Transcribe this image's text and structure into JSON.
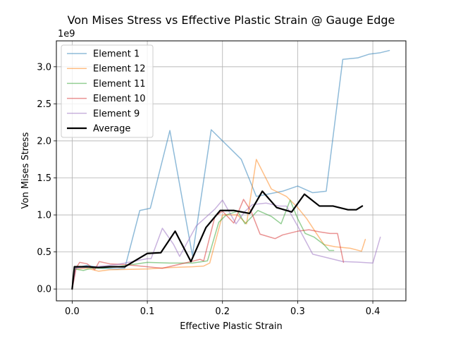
{
  "chart_data": {
    "type": "line",
    "title": "Von Mises Stress vs Effective Plastic Strain @ Gauge Edge",
    "xlabel": "Effective Plastic Strain",
    "ylabel": "Von Mises Stress",
    "y_offset_label": "1e9",
    "xlim": [
      -0.021,
      0.444
    ],
    "ylim": [
      -0.16,
      3.35
    ],
    "xticks": [
      0.0,
      0.1,
      0.2,
      0.3,
      0.4
    ],
    "xtick_labels": [
      "0.0",
      "0.1",
      "0.2",
      "0.3",
      "0.4"
    ],
    "yticks": [
      0.0,
      0.5,
      1.0,
      1.5,
      2.0,
      2.5,
      3.0
    ],
    "ytick_labels": [
      "0.0",
      "0.5",
      "1.0",
      "1.5",
      "2.0",
      "2.5",
      "3.0"
    ],
    "grid": true,
    "legend_position": "top-left",
    "series": [
      {
        "name": "Element 1",
        "color": "#1f77b4",
        "alpha": 0.5,
        "linewidth": 1.5,
        "x": [
          0.0,
          0.003,
          0.02,
          0.04,
          0.06,
          0.07,
          0.09,
          0.104,
          0.13,
          0.16,
          0.185,
          0.225,
          0.245,
          0.26,
          0.28,
          0.3,
          0.32,
          0.338,
          0.36,
          0.38,
          0.395,
          0.41,
          0.422
        ],
        "y": [
          0.0,
          0.28,
          0.32,
          0.28,
          0.27,
          0.28,
          1.06,
          1.09,
          2.14,
          0.45,
          2.15,
          1.75,
          1.25,
          1.28,
          1.32,
          1.39,
          1.3,
          1.32,
          3.1,
          3.12,
          3.17,
          3.19,
          3.22
        ]
      },
      {
        "name": "Element 12",
        "color": "#ff7f0e",
        "alpha": 0.5,
        "linewidth": 1.5,
        "x": [
          0.0,
          0.005,
          0.02,
          0.035,
          0.05,
          0.1,
          0.13,
          0.16,
          0.175,
          0.183,
          0.2,
          0.22,
          0.232,
          0.245,
          0.265,
          0.285,
          0.3,
          0.312,
          0.325,
          0.335,
          0.35,
          0.37,
          0.385,
          0.39
        ],
        "y": [
          0.0,
          0.27,
          0.28,
          0.24,
          0.26,
          0.27,
          0.29,
          0.3,
          0.31,
          0.35,
          1.0,
          1.0,
          0.88,
          1.75,
          1.35,
          1.25,
          1.1,
          0.95,
          0.75,
          0.6,
          0.57,
          0.55,
          0.51,
          0.67
        ]
      },
      {
        "name": "Element 11",
        "color": "#2ca02c",
        "alpha": 0.5,
        "linewidth": 1.5,
        "x": [
          0.0,
          0.003,
          0.015,
          0.025,
          0.04,
          0.06,
          0.08,
          0.1,
          0.13,
          0.16,
          0.18,
          0.195,
          0.205,
          0.22,
          0.23,
          0.247,
          0.265,
          0.278,
          0.29,
          0.3,
          0.31,
          0.322,
          0.335,
          0.342,
          0.348
        ],
        "y": [
          0.0,
          0.27,
          0.25,
          0.28,
          0.28,
          0.3,
          0.33,
          0.36,
          0.35,
          0.35,
          0.38,
          0.9,
          1.0,
          1.05,
          0.88,
          1.06,
          0.98,
          0.88,
          1.2,
          0.95,
          0.75,
          0.7,
          0.6,
          0.52,
          0.52
        ]
      },
      {
        "name": "Element 10",
        "color": "#d62728",
        "alpha": 0.5,
        "linewidth": 1.5,
        "x": [
          0.0,
          0.005,
          0.01,
          0.02,
          0.03,
          0.036,
          0.05,
          0.07,
          0.1,
          0.12,
          0.15,
          0.17,
          0.175,
          0.19,
          0.2,
          0.215,
          0.228,
          0.238,
          0.25,
          0.27,
          0.28,
          0.3,
          0.315,
          0.33,
          0.343,
          0.353,
          0.361
        ],
        "y": [
          0.0,
          0.28,
          0.36,
          0.34,
          0.26,
          0.37,
          0.34,
          0.33,
          0.3,
          0.28,
          0.35,
          0.4,
          0.38,
          0.98,
          1.05,
          0.89,
          1.21,
          1.05,
          0.74,
          0.68,
          0.73,
          0.78,
          0.8,
          0.77,
          0.75,
          0.75,
          0.36
        ]
      },
      {
        "name": "Element 9",
        "color": "#9467bd",
        "alpha": 0.5,
        "linewidth": 1.5,
        "x": [
          0.0,
          0.005,
          0.03,
          0.06,
          0.08,
          0.1,
          0.105,
          0.12,
          0.135,
          0.143,
          0.165,
          0.19,
          0.2,
          0.218,
          0.23,
          0.24,
          0.258,
          0.275,
          0.285,
          0.3,
          0.32,
          0.36,
          0.385,
          0.4,
          0.41
        ],
        "y": [
          0.0,
          0.28,
          0.3,
          0.33,
          0.37,
          0.41,
          0.41,
          0.82,
          0.6,
          0.44,
          0.85,
          1.08,
          1.2,
          0.88,
          1.05,
          1.14,
          1.16,
          1.12,
          1.12,
          0.85,
          0.47,
          0.37,
          0.36,
          0.35,
          0.7
        ]
      },
      {
        "name": "Average",
        "color": "#000000",
        "alpha": 1.0,
        "linewidth": 2.2,
        "x": [
          0.0,
          0.003,
          0.02,
          0.035,
          0.05,
          0.07,
          0.1,
          0.118,
          0.137,
          0.158,
          0.178,
          0.197,
          0.215,
          0.236,
          0.253,
          0.272,
          0.292,
          0.309,
          0.329,
          0.347,
          0.367,
          0.378,
          0.386
        ],
        "y": [
          0.0,
          0.3,
          0.3,
          0.29,
          0.3,
          0.3,
          0.48,
          0.49,
          0.78,
          0.37,
          0.83,
          1.06,
          1.06,
          1.02,
          1.32,
          1.1,
          1.04,
          1.28,
          1.12,
          1.12,
          1.07,
          1.07,
          1.12
        ]
      }
    ]
  }
}
